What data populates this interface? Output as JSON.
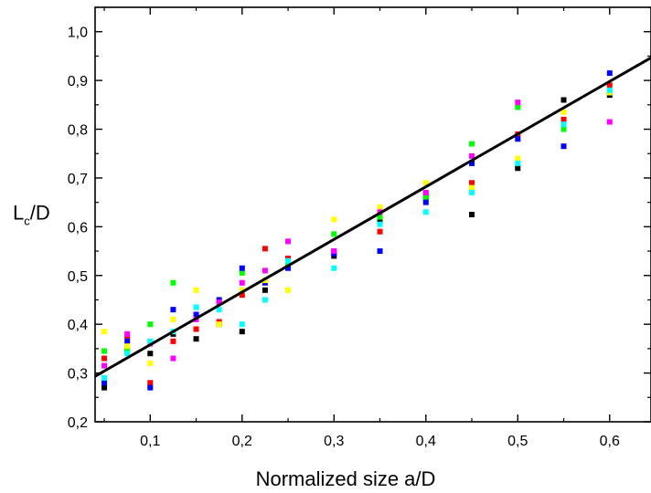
{
  "chart_data": {
    "type": "scatter",
    "title": "",
    "xlabel": "Normalized size a/D",
    "ylabel": {
      "main": "L",
      "subscript": "c",
      "suffix": "/D"
    },
    "xlim": [
      0.04,
      0.645
    ],
    "ylim": [
      0.2,
      1.05
    ],
    "x_ticks": [
      0.1,
      0.2,
      0.3,
      0.4,
      0.5,
      0.6
    ],
    "x_tick_labels": [
      "0,1",
      "0,2",
      "0,3",
      "0,4",
      "0,5",
      "0,6"
    ],
    "y_ticks": [
      0.2,
      0.3,
      0.4,
      0.5,
      0.6,
      0.7,
      0.8,
      0.9,
      1.0
    ],
    "y_tick_labels": [
      "0,2",
      "0,3",
      "0,4",
      "0,5",
      "0,6",
      "0,7",
      "0,8",
      "0,9",
      "1,0"
    ],
    "grid": false,
    "legend": "none",
    "fit_line": {
      "color": "#000000",
      "slope": 1.08,
      "intercept": 0.25
    },
    "series": [
      {
        "color": "#000000",
        "points": [
          [
            0.05,
            0.27
          ],
          [
            0.075,
            0.35
          ],
          [
            0.1,
            0.34
          ],
          [
            0.125,
            0.38
          ],
          [
            0.15,
            0.37
          ],
          [
            0.175,
            0.4
          ],
          [
            0.2,
            0.385
          ],
          [
            0.225,
            0.47
          ],
          [
            0.25,
            0.535
          ],
          [
            0.3,
            0.54
          ],
          [
            0.35,
            0.61
          ],
          [
            0.4,
            0.66
          ],
          [
            0.45,
            0.625
          ],
          [
            0.5,
            0.72
          ],
          [
            0.55,
            0.86
          ],
          [
            0.6,
            0.87
          ]
        ]
      },
      {
        "color": "#ff0000",
        "points": [
          [
            0.05,
            0.33
          ],
          [
            0.075,
            0.375
          ],
          [
            0.1,
            0.28
          ],
          [
            0.125,
            0.365
          ],
          [
            0.15,
            0.39
          ],
          [
            0.175,
            0.405
          ],
          [
            0.2,
            0.46
          ],
          [
            0.225,
            0.555
          ],
          [
            0.25,
            0.535
          ],
          [
            0.3,
            0.55
          ],
          [
            0.35,
            0.59
          ],
          [
            0.4,
            0.665
          ],
          [
            0.45,
            0.69
          ],
          [
            0.5,
            0.79
          ],
          [
            0.55,
            0.82
          ],
          [
            0.6,
            0.89
          ]
        ]
      },
      {
        "color": "#00ff00",
        "points": [
          [
            0.05,
            0.345
          ],
          [
            0.075,
            0.345
          ],
          [
            0.1,
            0.4
          ],
          [
            0.125,
            0.485
          ],
          [
            0.15,
            0.435
          ],
          [
            0.175,
            0.445
          ],
          [
            0.2,
            0.505
          ],
          [
            0.225,
            0.49
          ],
          [
            0.25,
            0.52
          ],
          [
            0.3,
            0.585
          ],
          [
            0.35,
            0.62
          ],
          [
            0.4,
            0.66
          ],
          [
            0.45,
            0.77
          ],
          [
            0.5,
            0.845
          ],
          [
            0.55,
            0.8
          ],
          [
            0.6,
            0.875
          ]
        ]
      },
      {
        "color": "#0000ff",
        "points": [
          [
            0.05,
            0.28
          ],
          [
            0.075,
            0.365
          ],
          [
            0.1,
            0.27
          ],
          [
            0.125,
            0.43
          ],
          [
            0.15,
            0.42
          ],
          [
            0.175,
            0.45
          ],
          [
            0.2,
            0.515
          ],
          [
            0.225,
            0.485
          ],
          [
            0.25,
            0.515
          ],
          [
            0.3,
            0.545
          ],
          [
            0.35,
            0.55
          ],
          [
            0.4,
            0.65
          ],
          [
            0.45,
            0.73
          ],
          [
            0.5,
            0.78
          ],
          [
            0.55,
            0.765
          ],
          [
            0.6,
            0.915
          ]
        ]
      },
      {
        "color": "#ffff00",
        "points": [
          [
            0.05,
            0.385
          ],
          [
            0.075,
            0.355
          ],
          [
            0.1,
            0.32
          ],
          [
            0.125,
            0.41
          ],
          [
            0.15,
            0.47
          ],
          [
            0.175,
            0.4
          ],
          [
            0.2,
            0.47
          ],
          [
            0.225,
            0.49
          ],
          [
            0.25,
            0.47
          ],
          [
            0.3,
            0.615
          ],
          [
            0.35,
            0.64
          ],
          [
            0.4,
            0.69
          ],
          [
            0.45,
            0.68
          ],
          [
            0.5,
            0.74
          ],
          [
            0.55,
            0.835
          ],
          [
            0.6,
            0.875
          ]
        ]
      },
      {
        "color": "#ff00ff",
        "points": [
          [
            0.05,
            0.315
          ],
          [
            0.075,
            0.38
          ],
          [
            0.1,
            0.36
          ],
          [
            0.125,
            0.33
          ],
          [
            0.15,
            0.41
          ],
          [
            0.175,
            0.445
          ],
          [
            0.2,
            0.485
          ],
          [
            0.225,
            0.51
          ],
          [
            0.25,
            0.57
          ],
          [
            0.3,
            0.55
          ],
          [
            0.35,
            0.63
          ],
          [
            0.4,
            0.67
          ],
          [
            0.45,
            0.745
          ],
          [
            0.5,
            0.855
          ],
          [
            0.55,
            0.81
          ],
          [
            0.6,
            0.815
          ]
        ]
      },
      {
        "color": "#00ffff",
        "points": [
          [
            0.05,
            0.29
          ],
          [
            0.075,
            0.34
          ],
          [
            0.1,
            0.365
          ],
          [
            0.125,
            0.385
          ],
          [
            0.15,
            0.435
          ],
          [
            0.175,
            0.43
          ],
          [
            0.2,
            0.4
          ],
          [
            0.225,
            0.45
          ],
          [
            0.25,
            0.53
          ],
          [
            0.3,
            0.515
          ],
          [
            0.35,
            0.605
          ],
          [
            0.4,
            0.63
          ],
          [
            0.45,
            0.67
          ],
          [
            0.5,
            0.73
          ],
          [
            0.55,
            0.81
          ],
          [
            0.6,
            0.88
          ]
        ]
      }
    ]
  }
}
